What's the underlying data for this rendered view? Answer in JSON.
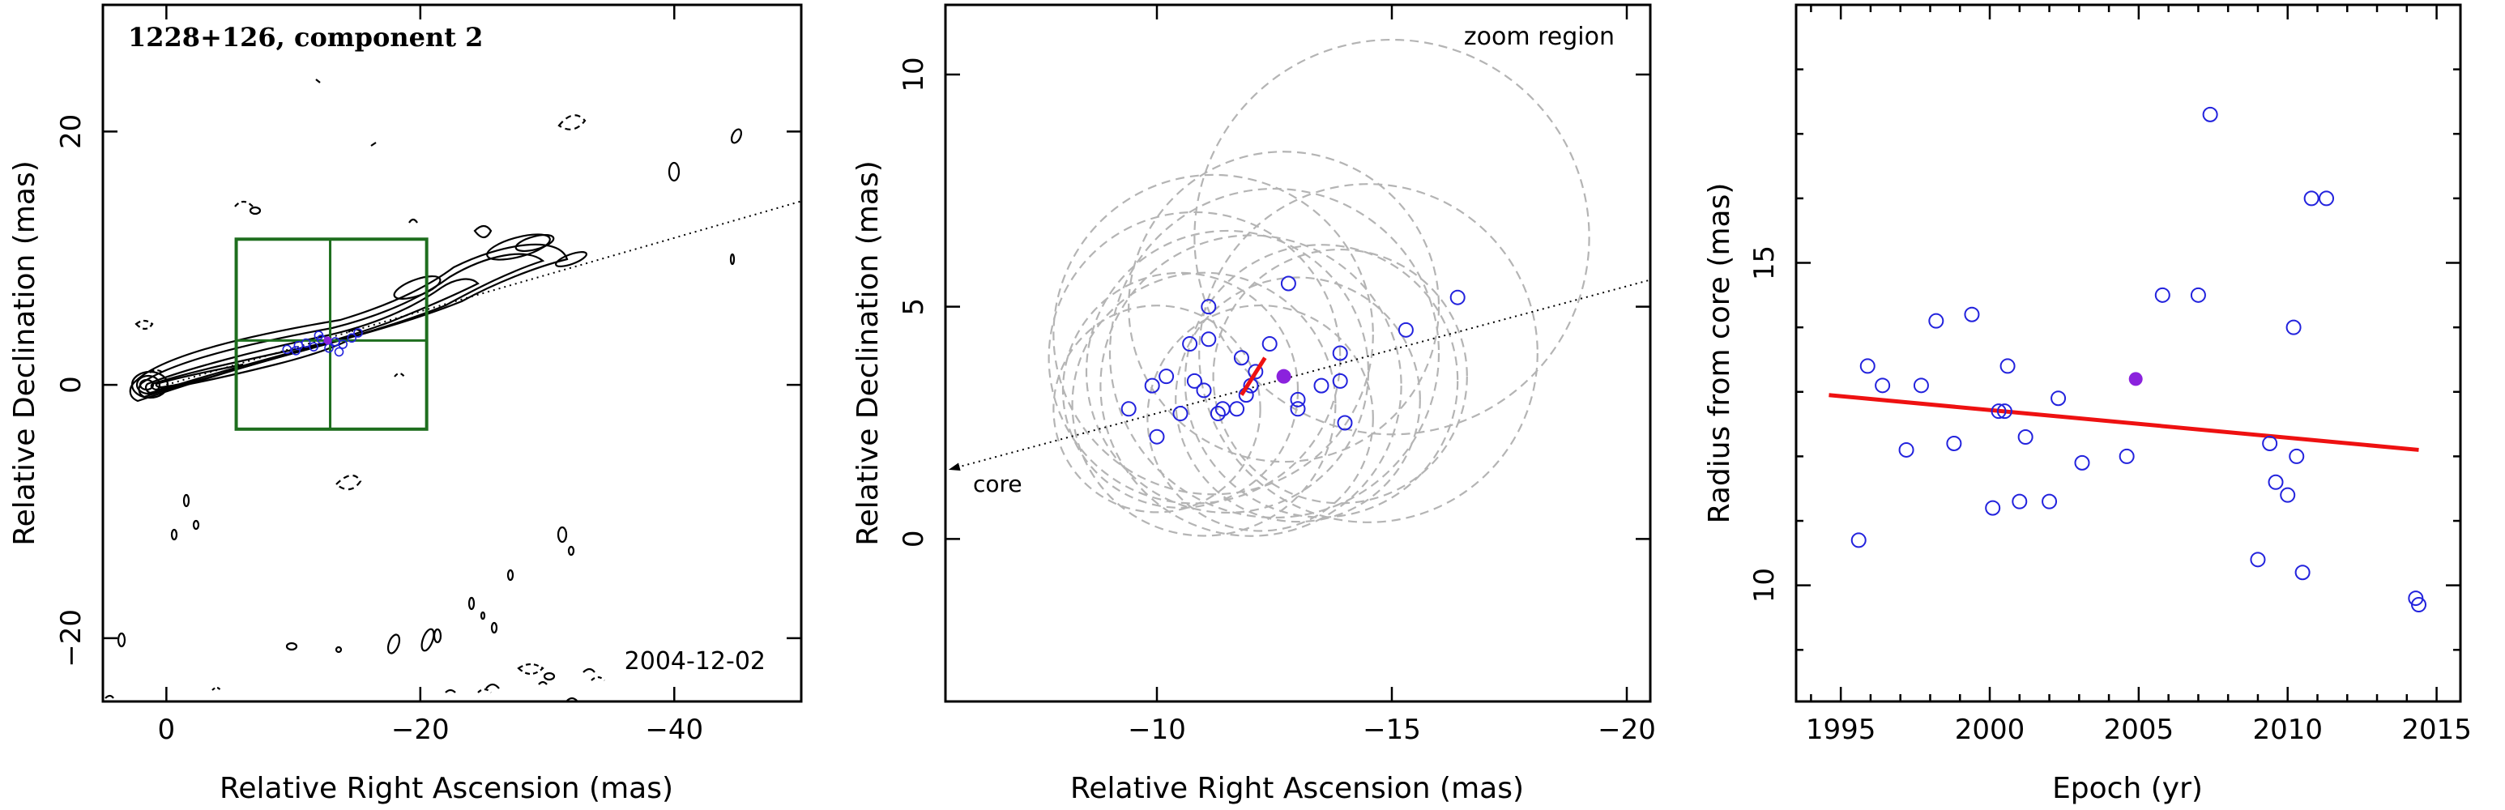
{
  "chart_data": [
    {
      "type": "scatter",
      "panel": "left",
      "title": "1228+126, component 2",
      "epoch_label": "2004-12-02",
      "xlabel": "Relative Right Ascension (mas)",
      "ylabel": "Relative Declination (mas)",
      "xlim": [
        5,
        -50
      ],
      "ylim": [
        -25,
        30
      ],
      "xticks": [
        0,
        -20,
        -40
      ],
      "yticks": [
        -20,
        0,
        20
      ],
      "xtick_labels": [
        "0",
        "−20",
        "−40"
      ],
      "ytick_labels": [
        "−20",
        "0",
        "20"
      ],
      "zoom_box": {
        "x": [
          -5.5,
          -20.5
        ],
        "y": [
          -3.5,
          11.5
        ],
        "x_divider": -12.9,
        "y_divider": 3.5
      },
      "jet_axis": {
        "from": [
          0,
          0
        ],
        "to": [
          -50,
          14.5
        ]
      },
      "component_positions": {
        "x": [
          -9.5,
          -10.4,
          -11.0,
          -11.6,
          -12.2,
          -12.8,
          -13.3,
          -13.9,
          -14.6,
          -15.1,
          -10.2,
          -12.0,
          -13.6
        ],
        "y": [
          2.8,
          3.1,
          3.3,
          3.0,
          3.6,
          2.9,
          3.4,
          3.2,
          3.7,
          4.1,
          2.7,
          3.9,
          2.6
        ]
      },
      "colors": {
        "contours": "#000000",
        "zoom_box": "#1e6e1e",
        "points": "#2222dd",
        "highlight": "#8b22dd"
      }
    },
    {
      "type": "scatter",
      "panel": "middle",
      "annotation": "zoom region",
      "core_label": "core",
      "xlabel": "Relative Right Ascension (mas)",
      "ylabel": "Relative Declination (mas)",
      "xlim": [
        -5.5,
        -20.5
      ],
      "ylim": [
        -3.5,
        11.5
      ],
      "xticks": [
        -10,
        -15,
        -20
      ],
      "yticks": [
        0,
        5,
        10
      ],
      "xtick_labels": [
        "−10",
        "−15",
        "−20"
      ],
      "ytick_labels": [
        "0",
        "5",
        "10"
      ],
      "x": [
        -10.0,
        -10.5,
        -9.4,
        -9.9,
        -11.0,
        -11.9,
        -12.0,
        -11.4,
        -11.7,
        -11.8,
        -11.1,
        -10.2,
        -10.8,
        -11.3,
        -12.1,
        -12.4,
        -12.8,
        -13.0,
        -13.0,
        -13.5,
        -13.9,
        -14.0,
        -13.9,
        -15.3,
        -16.4,
        -11.1,
        -10.7
      ],
      "y": [
        2.2,
        2.7,
        2.8,
        3.3,
        3.2,
        3.1,
        3.3,
        2.8,
        2.8,
        3.9,
        4.3,
        3.5,
        3.4,
        2.7,
        3.6,
        4.2,
        5.5,
        3.0,
        2.8,
        3.3,
        4.0,
        2.5,
        3.4,
        4.5,
        5.2,
        5.0,
        4.2
      ],
      "highlight": {
        "x": -12.7,
        "y": 3.5
      },
      "fit_segment": {
        "from": [
          -11.8,
          3.1
        ],
        "to": [
          -12.3,
          3.9
        ]
      },
      "circle_radii_mas": [
        2.2,
        2.5,
        2.8,
        3.0,
        3.2,
        3.5,
        2.6,
        2.9,
        3.4,
        2.4,
        3.1,
        2.7,
        4.2,
        3.6,
        3.3
      ],
      "circle_centers": {
        "x": [
          -10.0,
          -10.5,
          -11.0,
          -11.5,
          -12.0,
          -12.5,
          -13.0,
          -13.5,
          -11.2,
          -12.2,
          -10.8,
          -13.9,
          -15.0,
          -14.5,
          -12.7
        ],
        "y": [
          2.8,
          3.2,
          2.9,
          3.6,
          3.3,
          4.0,
          3.0,
          3.4,
          4.4,
          2.6,
          3.9,
          3.5,
          6.5,
          4.0,
          5.0
        ]
      },
      "colors": {
        "points": "#2222dd",
        "highlight": "#8b22dd",
        "fit": "#ee1111",
        "circles": "#b4b4b4"
      }
    },
    {
      "type": "scatter",
      "panel": "right",
      "xlabel": "Epoch (yr)",
      "ylabel": "Radius from core (mas)",
      "xlim": [
        1993.5,
        2015.8
      ],
      "ylim": [
        8.2,
        19.0
      ],
      "xticks": [
        1995,
        2000,
        2005,
        2010,
        2015
      ],
      "yticks": [
        10,
        15
      ],
      "xtick_labels": [
        "1995",
        "2000",
        "2005",
        "2010",
        "2015"
      ],
      "ytick_labels": [
        "10",
        "15"
      ],
      "x": [
        1995.6,
        1995.9,
        1996.4,
        1997.2,
        1997.7,
        1998.2,
        1998.8,
        1999.4,
        2000.1,
        2000.3,
        2000.5,
        2000.6,
        2001.0,
        2001.2,
        2002.0,
        2002.3,
        2003.1,
        2004.6,
        2005.8,
        2007.0,
        2007.4,
        2009.0,
        2009.4,
        2009.6,
        2010.0,
        2010.2,
        2010.3,
        2010.5,
        2010.8,
        2011.3,
        2014.3,
        2014.4
      ],
      "y": [
        10.7,
        13.4,
        13.1,
        12.1,
        13.1,
        14.1,
        12.2,
        14.2,
        11.2,
        12.7,
        12.7,
        13.4,
        11.3,
        12.3,
        11.3,
        12.9,
        11.9,
        12.0,
        14.5,
        14.5,
        17.3,
        10.4,
        12.2,
        11.6,
        11.4,
        14.0,
        12.0,
        10.2,
        16.0,
        16.0,
        9.8,
        9.7
      ],
      "highlight": {
        "x": 2004.9,
        "y": 13.2
      },
      "fit_line": {
        "x": [
          1994.6,
          2014.4
        ],
        "y": [
          12.95,
          12.1
        ]
      },
      "colors": {
        "points": "#2222dd",
        "highlight": "#8b22dd",
        "fit": "#ee1111"
      }
    }
  ]
}
